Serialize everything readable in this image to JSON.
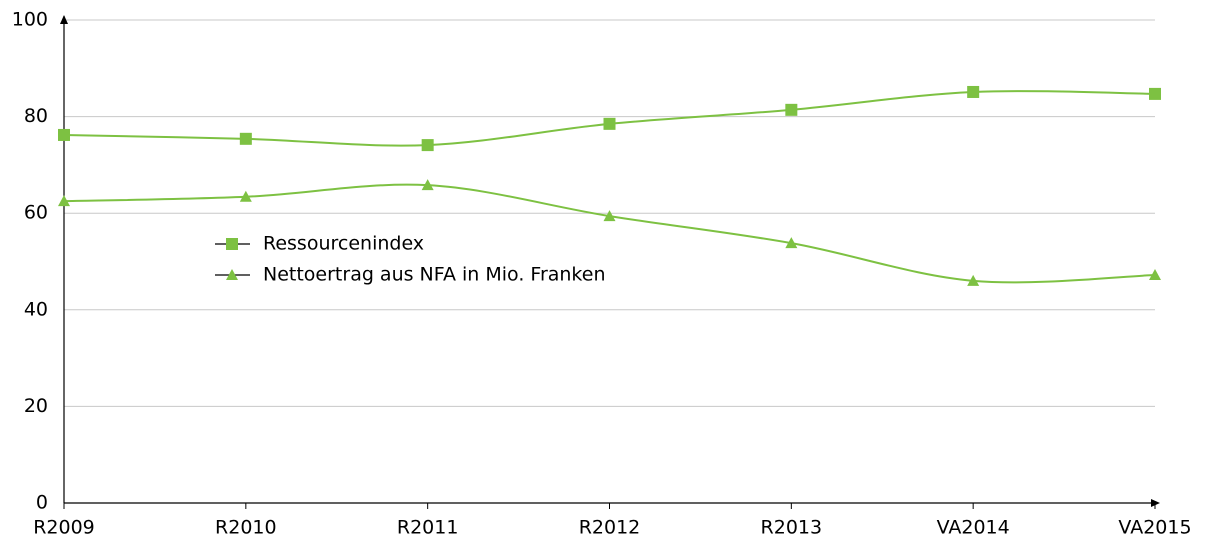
{
  "chart_data": {
    "type": "line",
    "categories": [
      "R2009",
      "R2010",
      "R2011",
      "R2012",
      "R2013",
      "VA2014",
      "VA2015"
    ],
    "series": [
      {
        "name": "Ressourcenindex",
        "color": "#7dc142",
        "marker": "square",
        "values": [
          76.2,
          75.4,
          74.1,
          78.5,
          81.4,
          85.1,
          84.7
        ]
      },
      {
        "name": "Nettoertrag aus NFA in Mio. Franken",
        "color": "#7dc142",
        "marker": "triangle",
        "values": [
          62.5,
          63.4,
          65.8,
          59.4,
          53.8,
          46.0,
          47.2
        ]
      }
    ],
    "ylim": [
      0,
      100
    ],
    "yticks": [
      0,
      20,
      40,
      60,
      80,
      100
    ],
    "grid": true,
    "smooth": true
  }
}
